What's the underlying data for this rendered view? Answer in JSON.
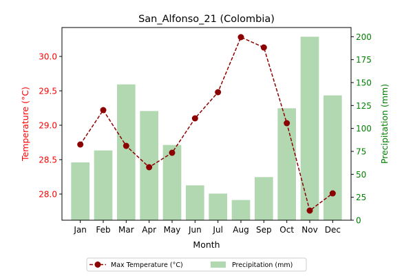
{
  "chart_data": {
    "type": "bar+line",
    "title": "San_Alfonso_21 (Colombia)",
    "xlabel": "Month",
    "categories": [
      "Jan",
      "Feb",
      "Mar",
      "Apr",
      "May",
      "Jun",
      "Jul",
      "Aug",
      "Sep",
      "Oct",
      "Nov",
      "Dec"
    ],
    "y_left": {
      "label": "Temperature (°C)",
      "lim": [
        27.62,
        30.42
      ],
      "ticks": [
        "28.0",
        "28.5",
        "29.0",
        "29.5",
        "30.0"
      ],
      "tick_values": [
        28.0,
        28.5,
        29.0,
        29.5,
        30.0
      ],
      "color": "#ff0000"
    },
    "y_right": {
      "label": "Precipitation (mm)",
      "lim": [
        0,
        210
      ],
      "ticks": [
        "0",
        "25",
        "50",
        "75",
        "100",
        "125",
        "150",
        "175",
        "200"
      ],
      "tick_values": [
        0,
        25,
        50,
        75,
        100,
        125,
        150,
        175,
        200
      ],
      "color": "#008000"
    },
    "series": [
      {
        "name": "Max Temperature (°C)",
        "kind": "line",
        "axis": "left",
        "color": "#8b0000",
        "values": [
          28.72,
          29.22,
          28.7,
          28.39,
          28.6,
          29.1,
          29.48,
          30.28,
          30.13,
          29.03,
          27.76,
          28.01
        ]
      },
      {
        "name": "Precipitation (mm)",
        "kind": "bar",
        "axis": "right",
        "color": "#b2d8b2",
        "values": [
          63,
          76,
          148,
          119,
          82,
          38,
          29,
          22,
          47,
          122,
          200,
          136
        ]
      }
    ],
    "legend": {
      "placement": "bottom-center",
      "entries": [
        "Max Temperature (°C)",
        "Precipitation (mm)"
      ]
    }
  }
}
